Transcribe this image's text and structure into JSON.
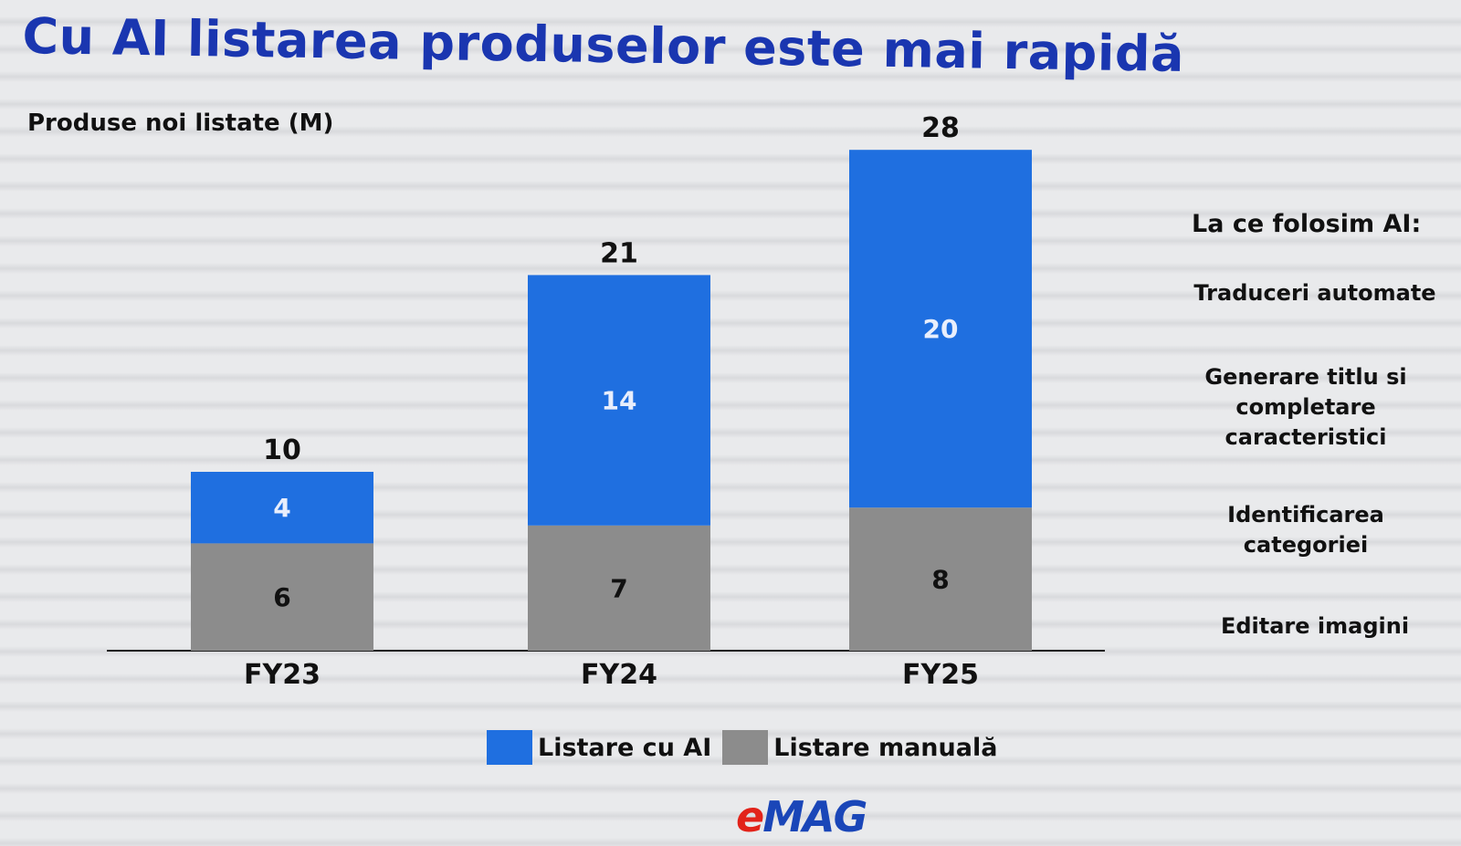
{
  "title": "Cu AI listarea produselor este mai rapidă",
  "brand": {
    "logo_e": "e",
    "logo_rest": "MAG"
  },
  "side_panel": {
    "title": "La ce folosim AI:",
    "items": [
      "Traduceri automate",
      "Generare titlu si completare caracteristici",
      "Identificarea categoriei",
      "Editare imagini"
    ]
  },
  "colors": {
    "ai": "#1f6fe0",
    "manual": "#8c8c8c",
    "title": "#1a36b0"
  },
  "chart_data": {
    "type": "bar",
    "stacked": true,
    "ylabel": "Produse noi listate (M)",
    "xlabel": "",
    "categories": [
      "FY23",
      "FY24",
      "FY25"
    ],
    "series": [
      {
        "name": "Listare manuală",
        "values": [
          6,
          7,
          8
        ],
        "color": "#8c8c8c"
      },
      {
        "name": "Listare cu AI",
        "values": [
          4,
          14,
          20
        ],
        "color": "#1f6fe0"
      }
    ],
    "totals": [
      10,
      21,
      28
    ],
    "legend": [
      "Listare cu AI",
      "Listare manuală"
    ],
    "legend_position": "bottom",
    "grid": false
  }
}
